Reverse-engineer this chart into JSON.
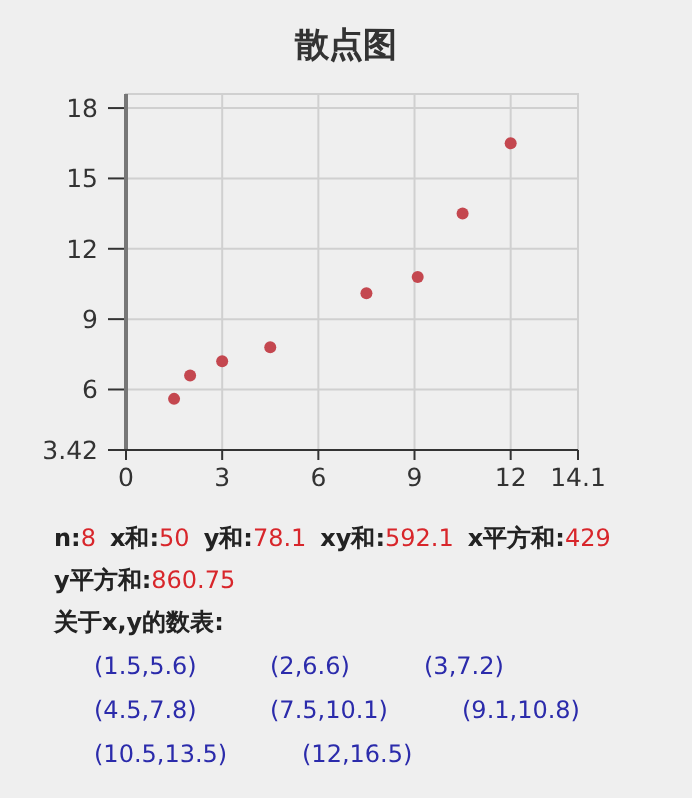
{
  "chart_data": {
    "type": "scatter",
    "title": "散点图",
    "x": [
      1.5,
      2,
      3,
      4.5,
      7.5,
      9.1,
      10.5,
      12
    ],
    "series": [
      {
        "color": "#c4474f",
        "values": [
          5.6,
          6.6,
          7.2,
          7.8,
          10.1,
          10.8,
          13.5,
          16.5
        ]
      }
    ],
    "xlim": [
      0,
      14.1
    ],
    "xticks": [
      0,
      3,
      6,
      9,
      12,
      14.1
    ],
    "ylim": [
      3.42,
      18.6
    ],
    "yticks": [
      3.42,
      6,
      9,
      12,
      15,
      18
    ],
    "grid": true,
    "marker": "circle",
    "annotations": [
      "n:8",
      "x和:50",
      "y和:78.1",
      "xy和:592.1",
      "x平方和:429",
      "y平方和:860.75",
      "关于x,y的数表:",
      "(1.5,5.6)",
      "(2,6.6)",
      "(3,7.2)",
      "(4.5,7.8)",
      "(7.5,10.1)",
      "(9.1,10.8)",
      "(10.5,13.5)",
      "(12,16.5)"
    ]
  }
}
